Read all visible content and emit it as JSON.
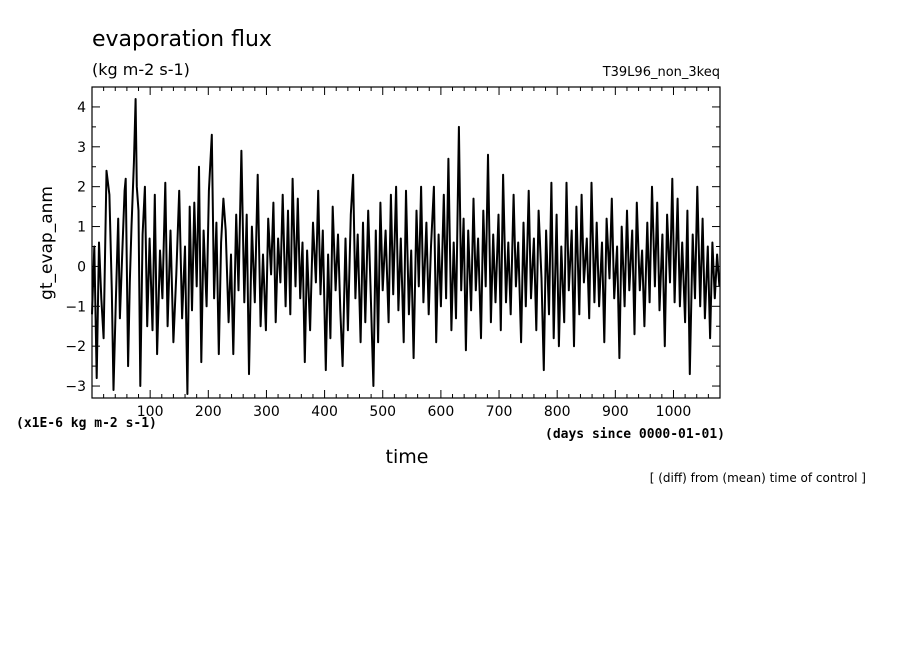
{
  "header": {
    "title": "evaporation flux",
    "units": "(kg m-2 s-1)",
    "run_id": "T39L96_non_3keq"
  },
  "footer": {
    "scale_note": "(x1E-6 kg m-2 s-1)",
    "time_unit_note": "(days since 0000-01-01)",
    "operation_note": "[ (diff) from (mean) time of control ]"
  },
  "chart_data": {
    "type": "line",
    "title": "evaporation flux",
    "subtitle": "(kg m-2 s-1)",
    "xlabel": "time",
    "ylabel": "gt_evap_anm",
    "xlim": [
      0,
      1080
    ],
    "ylim": [
      -3.3,
      4.5
    ],
    "x_ticks": [
      100,
      200,
      300,
      400,
      500,
      600,
      700,
      800,
      900,
      1000
    ],
    "y_ticks": [
      -3,
      -2,
      -1,
      0,
      1,
      2,
      3,
      4
    ],
    "grid": false,
    "series": [
      {
        "values": [
          {
            "x": 0,
            "y": -1.2
          },
          {
            "x": 4,
            "y": 0.5
          },
          {
            "x": 8,
            "y": -2.8
          },
          {
            "x": 12,
            "y": 0.6
          },
          {
            "x": 16,
            "y": -0.8
          },
          {
            "x": 20,
            "y": -1.8
          },
          {
            "x": 25,
            "y": 2.4
          },
          {
            "x": 30,
            "y": 1.8
          },
          {
            "x": 34,
            "y": -0.6
          },
          {
            "x": 37,
            "y": -3.1
          },
          {
            "x": 41,
            "y": -0.9
          },
          {
            "x": 45,
            "y": 1.2
          },
          {
            "x": 48,
            "y": -1.3
          },
          {
            "x": 52,
            "y": 0.3
          },
          {
            "x": 56,
            "y": 1.9
          },
          {
            "x": 58,
            "y": 2.2
          },
          {
            "x": 62,
            "y": -2.5
          },
          {
            "x": 65,
            "y": -0.4
          },
          {
            "x": 68,
            "y": 1.0
          },
          {
            "x": 72,
            "y": 2.6
          },
          {
            "x": 75,
            "y": 4.2
          },
          {
            "x": 77,
            "y": 2.0
          },
          {
            "x": 80,
            "y": 1.4
          },
          {
            "x": 83,
            "y": -3.0
          },
          {
            "x": 87,
            "y": 0.8
          },
          {
            "x": 91,
            "y": 2.0
          },
          {
            "x": 95,
            "y": -1.5
          },
          {
            "x": 99,
            "y": 0.7
          },
          {
            "x": 104,
            "y": -1.6
          },
          {
            "x": 108,
            "y": 1.8
          },
          {
            "x": 112,
            "y": -2.2
          },
          {
            "x": 117,
            "y": 0.4
          },
          {
            "x": 121,
            "y": -0.8
          },
          {
            "x": 126,
            "y": 2.1
          },
          {
            "x": 130,
            "y": -1.5
          },
          {
            "x": 135,
            "y": 0.9
          },
          {
            "x": 140,
            "y": -1.9
          },
          {
            "x": 145,
            "y": -0.2
          },
          {
            "x": 150,
            "y": 1.9
          },
          {
            "x": 155,
            "y": -1.3
          },
          {
            "x": 160,
            "y": 0.5
          },
          {
            "x": 164,
            "y": -3.2
          },
          {
            "x": 168,
            "y": 1.5
          },
          {
            "x": 172,
            "y": -1.1
          },
          {
            "x": 176,
            "y": 1.6
          },
          {
            "x": 180,
            "y": -0.5
          },
          {
            "x": 184,
            "y": 2.5
          },
          {
            "x": 188,
            "y": -2.4
          },
          {
            "x": 192,
            "y": 0.9
          },
          {
            "x": 197,
            "y": -1.0
          },
          {
            "x": 201,
            "y": 1.9
          },
          {
            "x": 206,
            "y": 3.3
          },
          {
            "x": 210,
            "y": -0.8
          },
          {
            "x": 214,
            "y": 1.1
          },
          {
            "x": 218,
            "y": -2.2
          },
          {
            "x": 222,
            "y": 0.6
          },
          {
            "x": 226,
            "y": 1.7
          },
          {
            "x": 230,
            "y": 0.9
          },
          {
            "x": 235,
            "y": -1.4
          },
          {
            "x": 239,
            "y": 0.3
          },
          {
            "x": 243,
            "y": -2.2
          },
          {
            "x": 248,
            "y": 1.3
          },
          {
            "x": 252,
            "y": -0.6
          },
          {
            "x": 257,
            "y": 2.9
          },
          {
            "x": 262,
            "y": -0.9
          },
          {
            "x": 266,
            "y": 1.3
          },
          {
            "x": 270,
            "y": -2.7
          },
          {
            "x": 275,
            "y": 1.0
          },
          {
            "x": 280,
            "y": -0.9
          },
          {
            "x": 285,
            "y": 2.3
          },
          {
            "x": 290,
            "y": -1.5
          },
          {
            "x": 294,
            "y": 0.3
          },
          {
            "x": 299,
            "y": -1.6
          },
          {
            "x": 303,
            "y": 1.2
          },
          {
            "x": 308,
            "y": -0.2
          },
          {
            "x": 312,
            "y": 1.6
          },
          {
            "x": 316,
            "y": -1.4
          },
          {
            "x": 320,
            "y": 0.7
          },
          {
            "x": 324,
            "y": -0.4
          },
          {
            "x": 328,
            "y": 1.8
          },
          {
            "x": 333,
            "y": -1.0
          },
          {
            "x": 337,
            "y": 1.4
          },
          {
            "x": 341,
            "y": -1.2
          },
          {
            "x": 345,
            "y": 2.2
          },
          {
            "x": 350,
            "y": -0.5
          },
          {
            "x": 354,
            "y": 1.7
          },
          {
            "x": 358,
            "y": -0.8
          },
          {
            "x": 362,
            "y": 0.6
          },
          {
            "x": 366,
            "y": -2.4
          },
          {
            "x": 370,
            "y": 0.4
          },
          {
            "x": 375,
            "y": -1.6
          },
          {
            "x": 380,
            "y": 1.1
          },
          {
            "x": 385,
            "y": -0.4
          },
          {
            "x": 389,
            "y": 1.9
          },
          {
            "x": 393,
            "y": -0.7
          },
          {
            "x": 397,
            "y": 0.9
          },
          {
            "x": 402,
            "y": -2.6
          },
          {
            "x": 406,
            "y": 0.3
          },
          {
            "x": 410,
            "y": -1.8
          },
          {
            "x": 414,
            "y": 1.5
          },
          {
            "x": 419,
            "y": -0.6
          },
          {
            "x": 423,
            "y": 0.8
          },
          {
            "x": 427,
            "y": -1.1
          },
          {
            "x": 431,
            "y": -2.5
          },
          {
            "x": 436,
            "y": 0.7
          },
          {
            "x": 440,
            "y": -1.6
          },
          {
            "x": 445,
            "y": 1.3
          },
          {
            "x": 449,
            "y": 2.3
          },
          {
            "x": 453,
            "y": -0.8
          },
          {
            "x": 457,
            "y": 0.8
          },
          {
            "x": 462,
            "y": -1.9
          },
          {
            "x": 466,
            "y": 1.1
          },
          {
            "x": 470,
            "y": -1.4
          },
          {
            "x": 475,
            "y": 1.4
          },
          {
            "x": 479,
            "y": -0.5
          },
          {
            "x": 484,
            "y": -3.0
          },
          {
            "x": 488,
            "y": 0.9
          },
          {
            "x": 492,
            "y": -1.9
          },
          {
            "x": 496,
            "y": 1.6
          },
          {
            "x": 500,
            "y": -0.6
          },
          {
            "x": 505,
            "y": 0.9
          },
          {
            "x": 510,
            "y": -1.4
          },
          {
            "x": 514,
            "y": 1.8
          },
          {
            "x": 518,
            "y": -0.7
          },
          {
            "x": 523,
            "y": 2.0
          },
          {
            "x": 527,
            "y": -1.1
          },
          {
            "x": 531,
            "y": 0.7
          },
          {
            "x": 536,
            "y": -1.9
          },
          {
            "x": 540,
            "y": 1.9
          },
          {
            "x": 545,
            "y": -1.2
          },
          {
            "x": 549,
            "y": 0.4
          },
          {
            "x": 553,
            "y": -2.3
          },
          {
            "x": 558,
            "y": 1.4
          },
          {
            "x": 562,
            "y": -0.5
          },
          {
            "x": 566,
            "y": 2.0
          },
          {
            "x": 570,
            "y": -0.9
          },
          {
            "x": 575,
            "y": 1.1
          },
          {
            "x": 579,
            "y": -1.2
          },
          {
            "x": 583,
            "y": 0.5
          },
          {
            "x": 588,
            "y": 2.0
          },
          {
            "x": 592,
            "y": -1.9
          },
          {
            "x": 596,
            "y": 0.8
          },
          {
            "x": 600,
            "y": -1.0
          },
          {
            "x": 605,
            "y": 1.8
          },
          {
            "x": 609,
            "y": -0.8
          },
          {
            "x": 613,
            "y": 2.7
          },
          {
            "x": 618,
            "y": -1.6
          },
          {
            "x": 622,
            "y": 0.6
          },
          {
            "x": 626,
            "y": -1.3
          },
          {
            "x": 631,
            "y": 3.5
          },
          {
            "x": 635,
            "y": -0.6
          },
          {
            "x": 639,
            "y": 1.2
          },
          {
            "x": 643,
            "y": -2.1
          },
          {
            "x": 647,
            "y": 0.9
          },
          {
            "x": 652,
            "y": -1.1
          },
          {
            "x": 656,
            "y": 1.7
          },
          {
            "x": 660,
            "y": -0.6
          },
          {
            "x": 664,
            "y": 0.7
          },
          {
            "x": 669,
            "y": -1.8
          },
          {
            "x": 673,
            "y": 1.4
          },
          {
            "x": 677,
            "y": -0.5
          },
          {
            "x": 681,
            "y": 2.8
          },
          {
            "x": 686,
            "y": -1.4
          },
          {
            "x": 690,
            "y": 0.8
          },
          {
            "x": 694,
            "y": -0.9
          },
          {
            "x": 699,
            "y": 1.3
          },
          {
            "x": 703,
            "y": -1.6
          },
          {
            "x": 707,
            "y": 2.3
          },
          {
            "x": 712,
            "y": -0.9
          },
          {
            "x": 716,
            "y": 0.6
          },
          {
            "x": 720,
            "y": -1.2
          },
          {
            "x": 725,
            "y": 1.8
          },
          {
            "x": 729,
            "y": -0.5
          },
          {
            "x": 733,
            "y": 0.6
          },
          {
            "x": 738,
            "y": -1.9
          },
          {
            "x": 742,
            "y": 1.1
          },
          {
            "x": 746,
            "y": -1.0
          },
          {
            "x": 751,
            "y": 1.9
          },
          {
            "x": 755,
            "y": -0.8
          },
          {
            "x": 760,
            "y": 0.7
          },
          {
            "x": 764,
            "y": -1.6
          },
          {
            "x": 768,
            "y": 1.4
          },
          {
            "x": 773,
            "y": -0.3
          },
          {
            "x": 777,
            "y": -2.6
          },
          {
            "x": 781,
            "y": 0.9
          },
          {
            "x": 786,
            "y": -1.2
          },
          {
            "x": 790,
            "y": 2.1
          },
          {
            "x": 794,
            "y": -1.8
          },
          {
            "x": 799,
            "y": 1.3
          },
          {
            "x": 803,
            "y": -2.0
          },
          {
            "x": 807,
            "y": 0.5
          },
          {
            "x": 812,
            "y": -1.4
          },
          {
            "x": 816,
            "y": 2.1
          },
          {
            "x": 820,
            "y": -0.6
          },
          {
            "x": 825,
            "y": 0.9
          },
          {
            "x": 829,
            "y": -2.0
          },
          {
            "x": 833,
            "y": 1.5
          },
          {
            "x": 838,
            "y": -1.2
          },
          {
            "x": 842,
            "y": 1.8
          },
          {
            "x": 846,
            "y": -0.4
          },
          {
            "x": 851,
            "y": 0.7
          },
          {
            "x": 855,
            "y": -1.3
          },
          {
            "x": 859,
            "y": 2.1
          },
          {
            "x": 864,
            "y": -0.9
          },
          {
            "x": 868,
            "y": 1.1
          },
          {
            "x": 872,
            "y": -1.0
          },
          {
            "x": 877,
            "y": 0.6
          },
          {
            "x": 881,
            "y": -1.9
          },
          {
            "x": 885,
            "y": 1.2
          },
          {
            "x": 890,
            "y": -0.3
          },
          {
            "x": 894,
            "y": 1.7
          },
          {
            "x": 898,
            "y": -0.8
          },
          {
            "x": 903,
            "y": 0.5
          },
          {
            "x": 907,
            "y": -2.3
          },
          {
            "x": 911,
            "y": 1.0
          },
          {
            "x": 916,
            "y": -1.0
          },
          {
            "x": 920,
            "y": 1.4
          },
          {
            "x": 924,
            "y": -0.6
          },
          {
            "x": 929,
            "y": 0.9
          },
          {
            "x": 933,
            "y": -1.7
          },
          {
            "x": 937,
            "y": 1.6
          },
          {
            "x": 942,
            "y": -0.6
          },
          {
            "x": 946,
            "y": 0.4
          },
          {
            "x": 950,
            "y": -1.5
          },
          {
            "x": 955,
            "y": 1.1
          },
          {
            "x": 959,
            "y": -0.9
          },
          {
            "x": 963,
            "y": 2.0
          },
          {
            "x": 968,
            "y": -0.5
          },
          {
            "x": 972,
            "y": 1.6
          },
          {
            "x": 976,
            "y": -1.1
          },
          {
            "x": 981,
            "y": 0.8
          },
          {
            "x": 985,
            "y": -2.0
          },
          {
            "x": 989,
            "y": 1.3
          },
          {
            "x": 994,
            "y": -0.4
          },
          {
            "x": 998,
            "y": 2.2
          },
          {
            "x": 1002,
            "y": -0.9
          },
          {
            "x": 1007,
            "y": 1.7
          },
          {
            "x": 1011,
            "y": -1.0
          },
          {
            "x": 1015,
            "y": 0.6
          },
          {
            "x": 1020,
            "y": -1.4
          },
          {
            "x": 1024,
            "y": 1.4
          },
          {
            "x": 1028,
            "y": -2.7
          },
          {
            "x": 1033,
            "y": 0.8
          },
          {
            "x": 1037,
            "y": -0.8
          },
          {
            "x": 1041,
            "y": 2.0
          },
          {
            "x": 1046,
            "y": -1.0
          },
          {
            "x": 1050,
            "y": 1.2
          },
          {
            "x": 1054,
            "y": -1.3
          },
          {
            "x": 1059,
            "y": 0.5
          },
          {
            "x": 1063,
            "y": -1.8
          },
          {
            "x": 1067,
            "y": 0.6
          },
          {
            "x": 1071,
            "y": -0.8
          },
          {
            "x": 1075,
            "y": 0.3
          },
          {
            "x": 1079,
            "y": -0.5
          }
        ]
      }
    ]
  }
}
